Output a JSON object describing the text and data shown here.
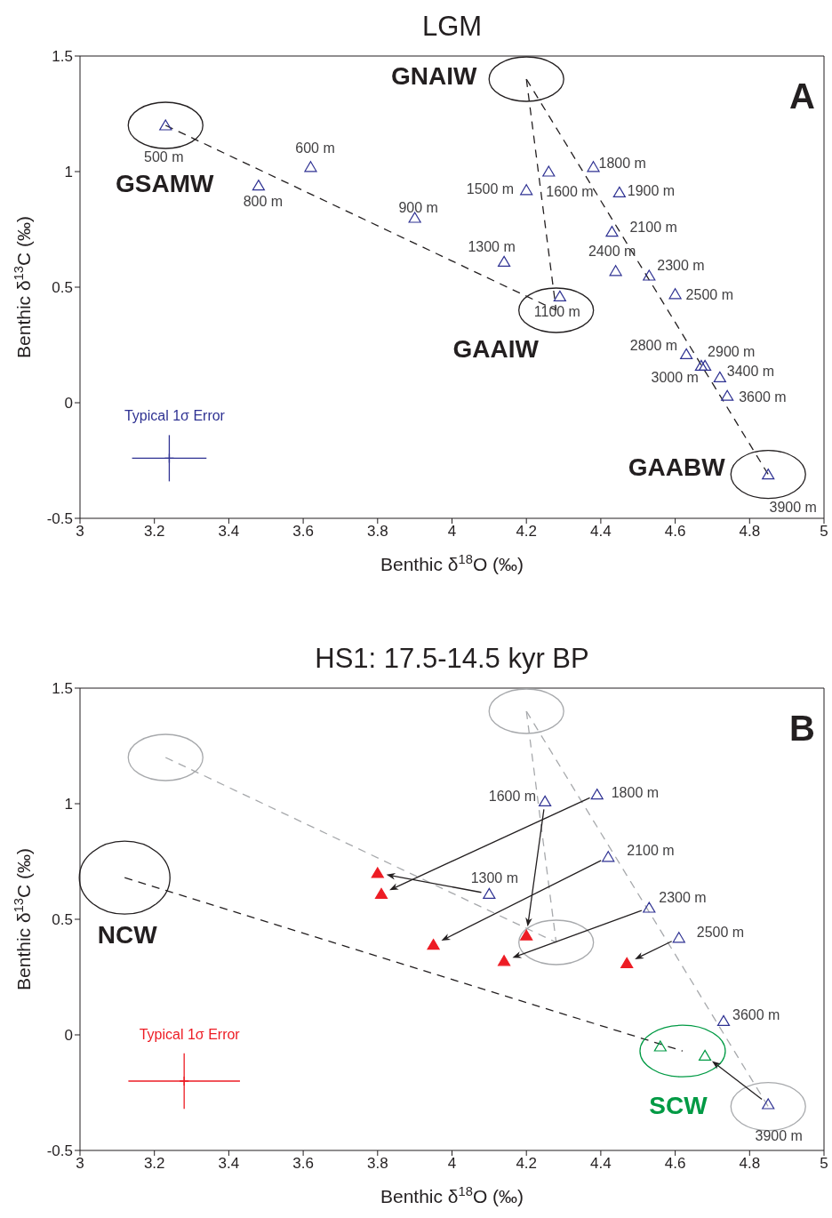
{
  "chart_data": [
    {
      "type": "scatter",
      "title": "LGM",
      "xlabel": "Benthic δ$^{18}$O (‰)",
      "ylabel": "Benthic δ$^{13}$C (‰)",
      "xlim": [
        3,
        5
      ],
      "ylim": [
        -0.5,
        1.5
      ],
      "xticks": [
        3,
        3.2,
        3.4,
        3.6,
        3.8,
        4,
        4.2,
        4.4,
        4.6,
        4.8,
        5
      ],
      "yticks": [
        -0.5,
        0,
        0.5,
        1,
        1.5
      ],
      "marker": "triangle",
      "series": [
        {
          "color": "#2e3192",
          "x": [
            3.23,
            3.62,
            3.48,
            3.9,
            4.29,
            4.14,
            4.2,
            4.26,
            4.38,
            4.45,
            4.43,
            4.44,
            4.53,
            4.6,
            4.63,
            4.68,
            4.67,
            4.72,
            4.74,
            4.85
          ],
          "values": [
            1.2,
            1.02,
            0.94,
            0.8,
            0.46,
            0.61,
            0.92,
            1.0,
            1.02,
            0.91,
            0.74,
            0.57,
            0.55,
            0.47,
            0.21,
            0.16,
            0.16,
            0.11,
            0.03,
            -0.31
          ]
        },
        {
          "name": "Typical 1σ Error",
          "color": "#2e3192",
          "marker": "cross",
          "x": [
            3.24
          ],
          "values": [
            -0.24
          ],
          "errors": [
            0.1
          ],
          "xerrors": [
            0.1
          ]
        },
        {
          "type": "line",
          "line_style": "dashed",
          "marker": "none",
          "color": "#231f20",
          "x": [
            3.23,
            4.28
          ],
          "values": [
            1.2,
            0.4
          ]
        },
        {
          "type": "line",
          "line_style": "dashed",
          "marker": "none",
          "color": "#231f20",
          "x": [
            4.2,
            4.28
          ],
          "values": [
            1.4,
            0.4
          ]
        },
        {
          "type": "line",
          "line_style": "dashed",
          "marker": "none",
          "color": "#231f20",
          "x": [
            4.2,
            4.85
          ],
          "values": [
            1.4,
            -0.31
          ]
        }
      ],
      "annotations": [
        {
          "text": "GSAMW",
          "x": 3.23,
          "y": 1.2
        },
        {
          "text": "GNAIW",
          "x": 4.2,
          "y": 1.4
        },
        {
          "text": "GAAIW",
          "x": 4.28,
          "y": 0.4
        },
        {
          "text": "GAABW",
          "x": 4.85,
          "y": -0.31
        },
        "A",
        {
          "text": "500 m",
          "x": 3.23,
          "y": 1.2
        },
        {
          "text": "600 m",
          "x": 3.62,
          "y": 1.02
        },
        {
          "text": "800 m",
          "x": 3.48,
          "y": 0.94
        },
        {
          "text": "900 m",
          "x": 3.9,
          "y": 0.8
        },
        {
          "text": "1100 m",
          "x": 4.29,
          "y": 0.46
        },
        {
          "text": "1300 m",
          "x": 4.14,
          "y": 0.61
        },
        {
          "text": "1500 m",
          "x": 4.2,
          "y": 0.92
        },
        {
          "text": "1600 m",
          "x": 4.26,
          "y": 1.0
        },
        {
          "text": "1800 m",
          "x": 4.38,
          "y": 1.02
        },
        {
          "text": "1900 m",
          "x": 4.45,
          "y": 0.91
        },
        {
          "text": "2100 m",
          "x": 4.43,
          "y": 0.74
        },
        {
          "text": "2400 m",
          "x": 4.44,
          "y": 0.57
        },
        {
          "text": "2300 m",
          "x": 4.53,
          "y": 0.55
        },
        {
          "text": "2500 m",
          "x": 4.6,
          "y": 0.47
        },
        {
          "text": "2800 m",
          "x": 4.63,
          "y": 0.21
        },
        {
          "text": "2900 m",
          "x": 4.68,
          "y": 0.16
        },
        {
          "text": "3000 m",
          "x": 4.67,
          "y": 0.16
        },
        {
          "text": "3400 m",
          "x": 4.72,
          "y": 0.11
        },
        {
          "text": "3600 m",
          "x": 4.74,
          "y": 0.03
        },
        {
          "text": "3900 m",
          "x": 4.85,
          "y": -0.31
        }
      ]
    },
    {
      "type": "scatter",
      "title": "HS1: 17.5-14.5 kyr BP",
      "xlabel": "Benthic δ$^{18}$O (‰)",
      "ylabel": "Benthic δ$^{13}$C (‰)",
      "xlim": [
        3,
        5
      ],
      "ylim": [
        -0.5,
        1.5
      ],
      "xticks": [
        3,
        3.2,
        3.4,
        3.6,
        3.8,
        4,
        4.2,
        4.4,
        4.6,
        4.8,
        5
      ],
      "yticks": [
        -0.5,
        0,
        0.5,
        1,
        1.5
      ],
      "marker": "triangle",
      "series": [
        {
          "color": "#2e3192",
          "x": [
            4.1,
            4.25,
            4.39,
            4.42,
            4.53,
            4.61,
            4.73,
            4.85
          ],
          "values": [
            0.61,
            1.01,
            1.04,
            0.77,
            0.55,
            0.42,
            0.06,
            -0.3
          ]
        },
        {
          "color": "#ed1c24",
          "x": [
            3.8,
            3.81,
            3.95,
            4.2,
            4.14,
            4.47
          ],
          "values": [
            0.7,
            0.61,
            0.39,
            0.43,
            0.32,
            0.31
          ]
        },
        {
          "color": "#009a44",
          "x": [
            4.56,
            4.68
          ],
          "values": [
            -0.05,
            -0.09
          ]
        },
        {
          "name": "Typical 1σ Error",
          "color": "#ed1c24",
          "marker": "cross",
          "x": [
            3.28
          ],
          "values": [
            -0.2
          ],
          "errors": [
            0.12
          ],
          "xerrors": [
            0.15
          ]
        },
        {
          "type": "line",
          "line_style": "dashed",
          "marker": "none",
          "color": "#a7a9ac",
          "x": [
            3.23,
            4.28
          ],
          "values": [
            1.2,
            0.4
          ]
        },
        {
          "type": "line",
          "line_style": "dashed",
          "marker": "none",
          "color": "#a7a9ac",
          "x": [
            4.2,
            4.28
          ],
          "values": [
            1.4,
            0.4
          ]
        },
        {
          "type": "line",
          "line_style": "dashed",
          "marker": "none",
          "color": "#a7a9ac",
          "x": [
            4.2,
            4.85
          ],
          "values": [
            1.4,
            -0.31
          ]
        },
        {
          "type": "line",
          "line_style": "dashed",
          "marker": "none",
          "color": "#231f20",
          "x": [
            3.12,
            4.62
          ],
          "values": [
            0.68,
            -0.07
          ]
        }
      ],
      "annotations": [
        {
          "text": "NCW",
          "x": 3.12,
          "y": 0.68
        },
        {
          "text": "SCW",
          "x": 4.62,
          "y": -0.07
        },
        "B",
        {
          "text": "1300 m",
          "x": 4.1,
          "y": 0.61
        },
        {
          "text": "1600 m",
          "x": 4.25,
          "y": 1.01
        },
        {
          "text": "1800 m",
          "x": 4.39,
          "y": 1.04
        },
        {
          "text": "2100 m",
          "x": 4.42,
          "y": 0.77
        },
        {
          "text": "2300 m",
          "x": 4.53,
          "y": 0.55
        },
        {
          "text": "2500 m",
          "x": 4.61,
          "y": 0.42
        },
        {
          "text": "3600 m",
          "x": 4.73,
          "y": 0.06
        },
        {
          "text": "3900 m",
          "x": 4.85,
          "y": -0.3
        }
      ]
    }
  ]
}
